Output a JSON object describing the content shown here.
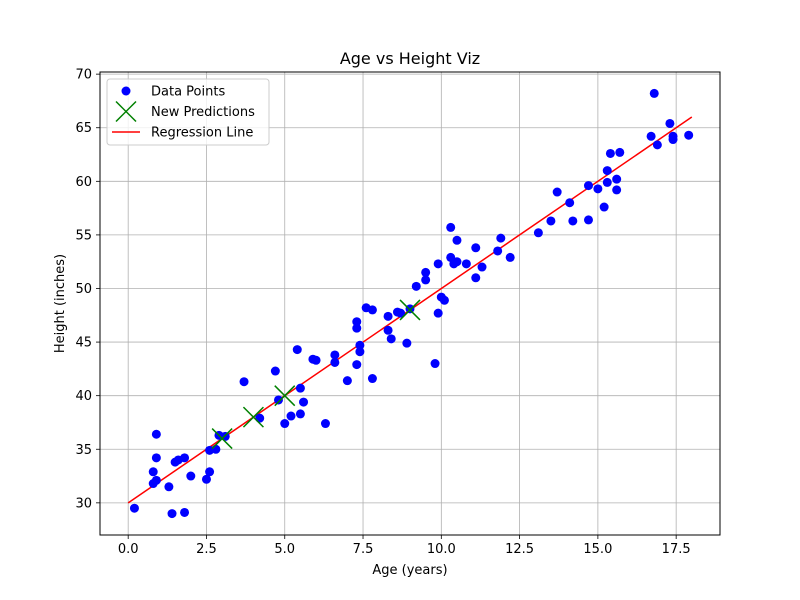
{
  "chart_data": {
    "type": "scatter",
    "title": "Age vs Height Viz",
    "xlabel": "Age (years)",
    "ylabel": "Height (inches)",
    "xlim": [
      -0.9,
      18.9
    ],
    "ylim": [
      27.0,
      70.2
    ],
    "xticks": [
      0.0,
      2.5,
      5.0,
      7.5,
      10.0,
      12.5,
      15.0,
      17.5
    ],
    "xtick_labels": [
      "0.0",
      "2.5",
      "5.0",
      "7.5",
      "10.0",
      "12.5",
      "15.0",
      "17.5"
    ],
    "yticks": [
      30,
      35,
      40,
      45,
      50,
      55,
      60,
      65,
      70
    ],
    "ytick_labels": [
      "30",
      "35",
      "40",
      "45",
      "50",
      "55",
      "60",
      "65",
      "70"
    ],
    "grid": true,
    "legend_position": "top-left",
    "series": [
      {
        "name": "Data Points",
        "kind": "scatter",
        "marker": "circle",
        "color": "#0000ff",
        "points": [
          [
            0.2,
            29.5
          ],
          [
            0.8,
            32.9
          ],
          [
            0.8,
            31.8
          ],
          [
            0.9,
            32.1
          ],
          [
            0.9,
            36.4
          ],
          [
            0.9,
            34.2
          ],
          [
            1.3,
            31.5
          ],
          [
            1.5,
            33.8
          ],
          [
            1.6,
            34.0
          ],
          [
            1.8,
            34.2
          ],
          [
            1.4,
            29.0
          ],
          [
            1.8,
            29.1
          ],
          [
            2.0,
            32.5
          ],
          [
            2.5,
            32.2
          ],
          [
            2.6,
            34.9
          ],
          [
            2.6,
            32.9
          ],
          [
            2.8,
            35.0
          ],
          [
            2.9,
            36.3
          ],
          [
            3.1,
            36.2
          ],
          [
            3.7,
            41.3
          ],
          [
            4.2,
            37.9
          ],
          [
            4.7,
            42.3
          ],
          [
            4.8,
            39.6
          ],
          [
            5.0,
            37.4
          ],
          [
            5.2,
            38.1
          ],
          [
            5.4,
            44.3
          ],
          [
            5.5,
            38.3
          ],
          [
            5.5,
            40.7
          ],
          [
            5.6,
            39.4
          ],
          [
            5.9,
            43.4
          ],
          [
            6.0,
            43.3
          ],
          [
            6.3,
            37.4
          ],
          [
            6.6,
            43.8
          ],
          [
            6.6,
            43.1
          ],
          [
            7.0,
            41.4
          ],
          [
            7.3,
            46.9
          ],
          [
            7.3,
            46.3
          ],
          [
            7.3,
            42.9
          ],
          [
            7.4,
            44.7
          ],
          [
            7.4,
            44.1
          ],
          [
            7.6,
            48.2
          ],
          [
            7.8,
            48.0
          ],
          [
            7.8,
            41.6
          ],
          [
            8.3,
            47.4
          ],
          [
            8.3,
            46.1
          ],
          [
            8.4,
            45.3
          ],
          [
            8.6,
            47.8
          ],
          [
            8.7,
            47.7
          ],
          [
            8.9,
            44.9
          ],
          [
            9.0,
            48.1
          ],
          [
            9.2,
            50.2
          ],
          [
            9.5,
            51.5
          ],
          [
            9.5,
            50.8
          ],
          [
            9.8,
            43.0
          ],
          [
            9.9,
            52.3
          ],
          [
            9.9,
            47.7
          ],
          [
            10.0,
            49.2
          ],
          [
            10.1,
            48.9
          ],
          [
            10.3,
            55.7
          ],
          [
            10.3,
            52.9
          ],
          [
            10.5,
            54.5
          ],
          [
            10.5,
            52.5
          ],
          [
            10.4,
            52.3
          ],
          [
            10.8,
            52.3
          ],
          [
            11.1,
            53.8
          ],
          [
            11.1,
            51.0
          ],
          [
            11.3,
            52.0
          ],
          [
            11.8,
            53.5
          ],
          [
            11.9,
            54.7
          ],
          [
            12.2,
            52.9
          ],
          [
            13.1,
            55.2
          ],
          [
            13.5,
            56.3
          ],
          [
            13.7,
            59.0
          ],
          [
            14.1,
            58.0
          ],
          [
            14.2,
            56.3
          ],
          [
            14.7,
            59.6
          ],
          [
            14.7,
            56.4
          ],
          [
            15.0,
            59.3
          ],
          [
            15.2,
            57.6
          ],
          [
            15.3,
            59.9
          ],
          [
            15.3,
            61.0
          ],
          [
            15.4,
            62.6
          ],
          [
            15.6,
            60.2
          ],
          [
            15.6,
            59.2
          ],
          [
            15.7,
            62.7
          ],
          [
            16.7,
            64.2
          ],
          [
            16.8,
            68.2
          ],
          [
            16.9,
            63.4
          ],
          [
            17.3,
            65.4
          ],
          [
            17.4,
            64.2
          ],
          [
            17.4,
            63.9
          ],
          [
            17.9,
            64.3
          ]
        ]
      },
      {
        "name": "New Predictions",
        "kind": "scatter",
        "marker": "x",
        "color": "#008000",
        "points": [
          [
            3.0,
            36.0
          ],
          [
            4.0,
            38.0
          ],
          [
            5.0,
            40.0
          ],
          [
            9.0,
            48.0
          ]
        ]
      },
      {
        "name": "Regression Line",
        "kind": "line",
        "color": "#ff0000",
        "points": [
          [
            0.0,
            30.0
          ],
          [
            18.0,
            66.0
          ]
        ]
      }
    ]
  }
}
